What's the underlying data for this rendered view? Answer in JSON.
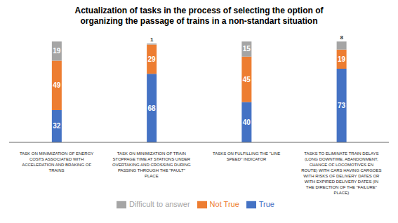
{
  "chart_data": {
    "type": "bar",
    "title": "Actualization of tasks in the process of selecting the option of\norganizing the passage of trains in a non-standart situation",
    "categories": [
      "TASK ON MINIMIZATION OF ENERGY\nCOSTS ASSOCIATED WITH\nACCELERATION AND BRAKING OF\nTRAINS",
      "TASK ON MINIMIZATION OF TRAIN\nSTOPPAGE TIME AT STATIONS UNDER\nOVERTAKING AND CROSSING DURING\nPASSING THROUGH THE \"FAULT\"\nPLACE",
      "TASKS ON FULFILLING THE \"LINE\nSPEED\" INDICATOR",
      "TASKS TO ELIMINATE TRAIN DELAYS\n(LONG DOWNTIME, ABANDONMENT,\nCHANGE OF LOCOMOTIVES EN\nROUTE) WITH CARS HAVING CARGOES\nWITH RISKS OF DELIVERY DATES OR\nWITH EXPIRED DELIVERY DATES (IN\nTHE DIRECTION OF THE \"FAILURE\"\nPLACE)"
    ],
    "series": [
      {
        "name": "True",
        "color": "#4472C4",
        "values": [
          32,
          68,
          40,
          73
        ]
      },
      {
        "name": "Not True",
        "color": "#ED7D31",
        "values": [
          49,
          29,
          45,
          19
        ]
      },
      {
        "name": "Difficult to answer",
        "color": "#A5A5A5",
        "values": [
          19,
          1,
          15,
          8
        ]
      }
    ],
    "stacked": true,
    "data_labels": true,
    "ylim": [
      0,
      105
    ],
    "tick_labels": "x",
    "grid": false,
    "legend": "bottom"
  }
}
